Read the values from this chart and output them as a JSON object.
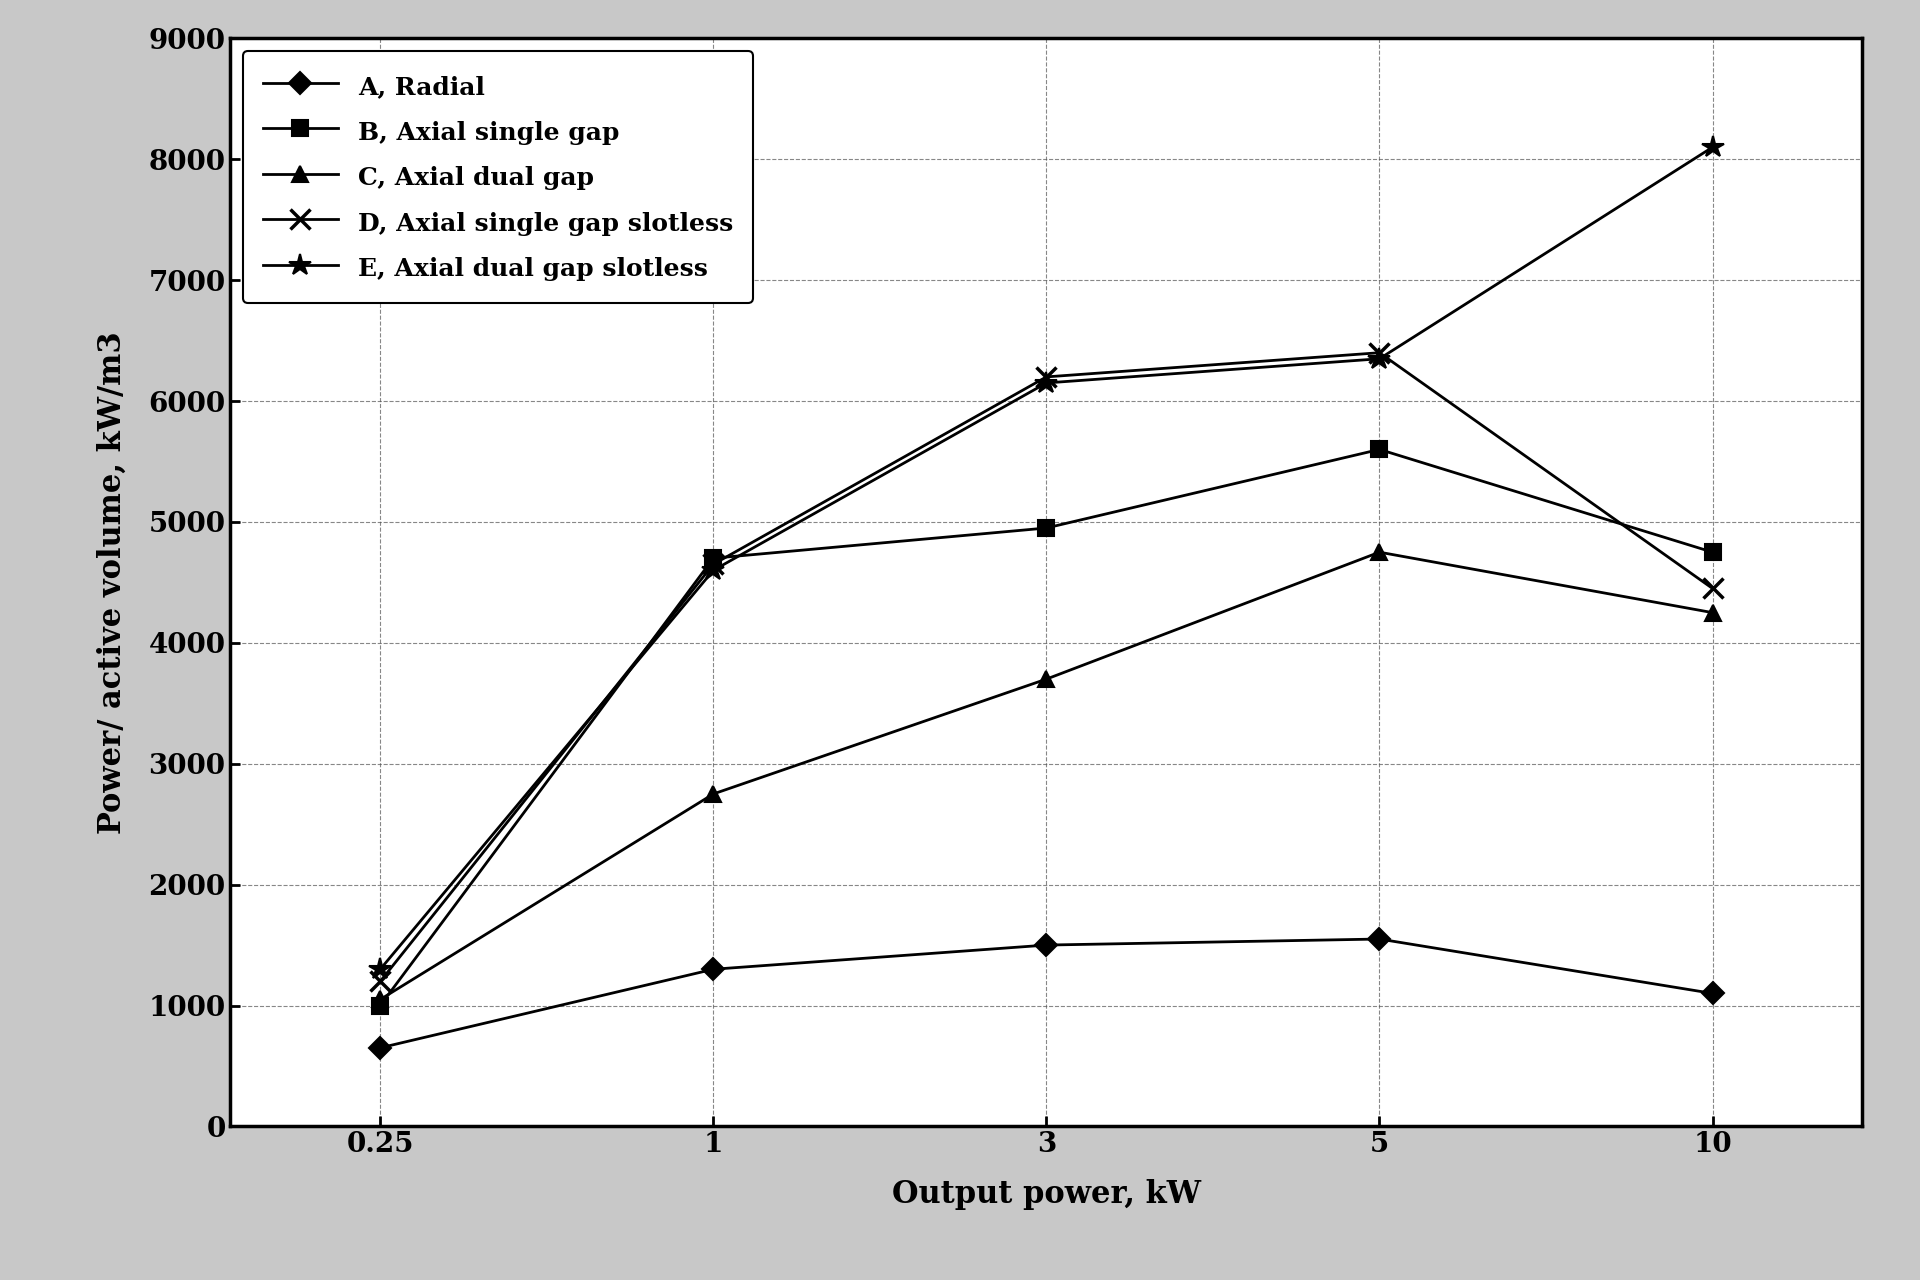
{
  "x_labels": [
    "0.25",
    "1",
    "3",
    "5",
    "10"
  ],
  "x_values": [
    0,
    1,
    2,
    3,
    4
  ],
  "series": [
    {
      "key": "A",
      "label": "A, Radial",
      "y": [
        650,
        1300,
        1500,
        1550,
        1100
      ],
      "marker": "D",
      "markersize": 11,
      "linewidth": 2.0
    },
    {
      "key": "B",
      "label": "B, Axial single gap",
      "y": [
        1000,
        4700,
        4950,
        5600,
        4750
      ],
      "marker": "s",
      "markersize": 11,
      "linewidth": 2.0
    },
    {
      "key": "C",
      "label": "C, Axial dual gap",
      "y": [
        1050,
        2750,
        3700,
        4750,
        4250
      ],
      "marker": "^",
      "markersize": 12,
      "linewidth": 2.0
    },
    {
      "key": "D",
      "label": "D, Axial single gap slotless",
      "y": [
        1200,
        4650,
        6200,
        6400,
        4450
      ],
      "marker": "x",
      "markersize": 14,
      "linewidth": 2.0,
      "markeredgewidth": 2.5
    },
    {
      "key": "E",
      "label": "E, Axial dual gap slotless",
      "y": [
        1300,
        4600,
        6150,
        6350,
        8100
      ],
      "marker": "*",
      "markersize": 16,
      "linewidth": 2.0,
      "markeredgewidth": 1.5
    }
  ],
  "xlabel": "Output power, kW",
  "ylabel": "Power/ active volume, kW/m3",
  "ylim": [
    0,
    9000
  ],
  "yticks": [
    0,
    1000,
    2000,
    3000,
    4000,
    5000,
    6000,
    7000,
    8000,
    9000
  ],
  "outer_bg": "#c8c8c8",
  "plot_bg": "#ffffff",
  "grid_color": "#555555",
  "legend_fontsize": 18,
  "axis_label_fontsize": 22,
  "tick_fontsize": 20
}
